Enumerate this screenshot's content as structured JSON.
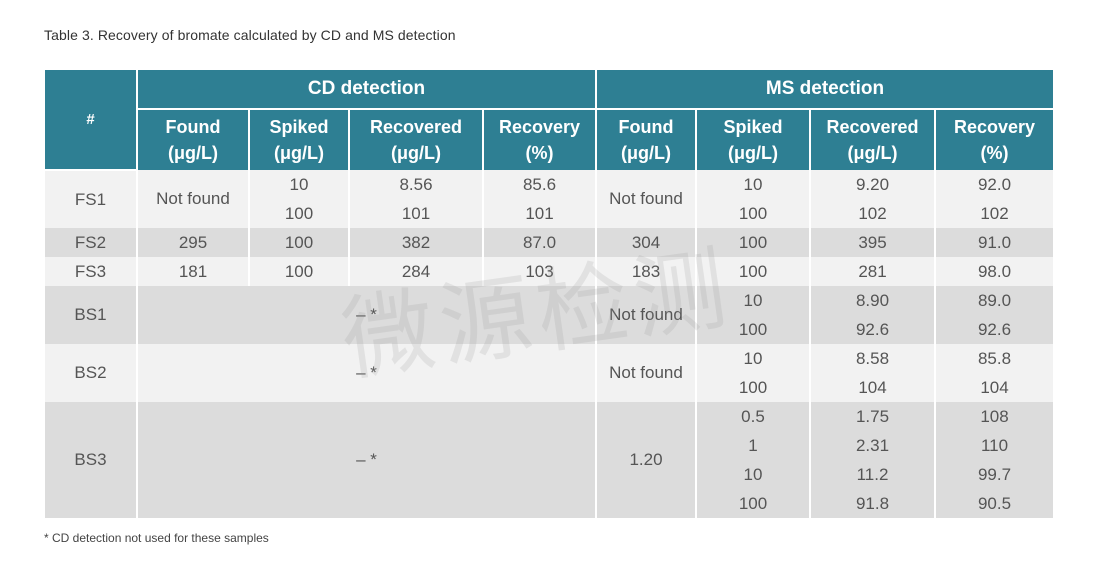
{
  "caption": "Table 3.  Recovery of bromate calculated by CD and MS detection",
  "header": {
    "hash": "#",
    "cd_group": "CD detection",
    "ms_group": "MS detection",
    "cols": [
      {
        "name": "Found",
        "unit": "(μg/L)"
      },
      {
        "name": "Spiked",
        "unit": "(μg/L)"
      },
      {
        "name": "Recovered",
        "unit": "(μg/L)"
      },
      {
        "name": "Recovery",
        "unit": "(%)"
      },
      {
        "name": "Found",
        "unit": "(μg/L)"
      },
      {
        "name": "Spiked",
        "unit": "(μg/L)"
      },
      {
        "name": "Recovered",
        "unit": "(μg/L)"
      },
      {
        "name": "Recovery",
        "unit": "(%)"
      }
    ]
  },
  "rows": {
    "fs1": {
      "id": "FS1",
      "cd_found": "Not found",
      "cd": [
        [
          "10",
          "8.56",
          "85.6"
        ],
        [
          "100",
          "101",
          "101"
        ]
      ],
      "ms_found": "Not found",
      "ms": [
        [
          "10",
          "9.20",
          "92.0"
        ],
        [
          "100",
          "102",
          "102"
        ]
      ]
    },
    "fs2": {
      "id": "FS2",
      "cells": [
        "295",
        "100",
        "382",
        "87.0",
        "304",
        "100",
        "395",
        "91.0"
      ]
    },
    "fs3": {
      "id": "FS3",
      "cells": [
        "181",
        "100",
        "284",
        "103",
        "183",
        "100",
        "281",
        "98.0"
      ]
    },
    "bs1": {
      "id": "BS1",
      "cd_dash": "– *",
      "ms_found": "Not found",
      "ms": [
        [
          "10",
          "8.90",
          "89.0"
        ],
        [
          "100",
          "92.6",
          "92.6"
        ]
      ]
    },
    "bs2": {
      "id": "BS2",
      "cd_dash": "– *",
      "ms_found": "Not found",
      "ms": [
        [
          "10",
          "8.58",
          "85.8"
        ],
        [
          "100",
          "104",
          "104"
        ]
      ]
    },
    "bs3": {
      "id": "BS3",
      "cd_dash": "– *",
      "ms_found": "1.20",
      "ms": [
        [
          "0.5",
          "1.75",
          "108"
        ],
        [
          "1",
          "2.31",
          "110"
        ],
        [
          "10",
          "11.2",
          "99.7"
        ],
        [
          "100",
          "91.8",
          "90.5"
        ]
      ]
    }
  },
  "footnote": "* CD detection not used for these samples",
  "watermark": "微源检测"
}
